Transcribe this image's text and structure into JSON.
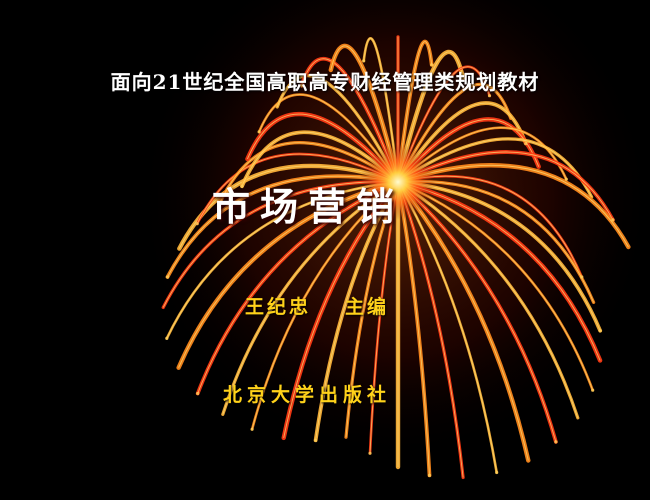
{
  "slide": {
    "series_line": "面向21世纪全国高职高专财经管理类规划教材",
    "title": "市场营销",
    "editor_name": "王纪忠",
    "editor_role": "主编",
    "publisher": "北京大学出版社"
  },
  "colors": {
    "background": "#000000",
    "title_text": "#ffffff",
    "credit_text": "#ffd21a",
    "firework_core": "#fff6a0",
    "firework_mid": "#ff9a1e",
    "firework_outer": "#e02010"
  }
}
